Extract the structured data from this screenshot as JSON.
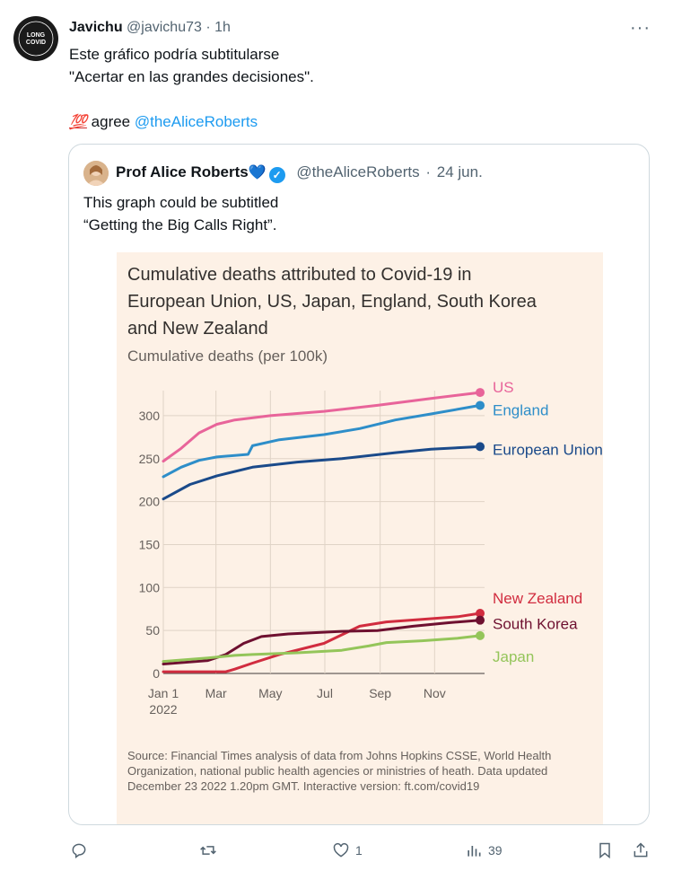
{
  "tweet": {
    "author_name": "Javichu",
    "author_handle": "@javichu73",
    "time": "1h",
    "avatar_text_top": "LONG",
    "avatar_text_bottom": "COVID",
    "lines": [
      "Este gráfico podría subtitularse",
      "\"Acertar en las grandes decisiones\"."
    ],
    "emoji": "💯",
    "agree_text": "agree",
    "mention": "@theAliceRoberts"
  },
  "quoted": {
    "author_name": "Prof Alice Roberts",
    "heart": "💙",
    "verified_mark": "✓",
    "author_handle": "@theAliceRoberts",
    "date": "24 jun.",
    "lines": [
      "This graph could be subtitled",
      "“Getting the Big Calls Right”."
    ]
  },
  "chart_data": {
    "type": "line",
    "title": "Cumulative deaths attributed to Covid-19 in European Union, US, Japan, England, South Korea and New Zealand",
    "title_lines": [
      "Cumulative deaths attributed to Covid-19 in",
      "European Union, US, Japan, England, South Korea",
      "and New Zealand"
    ],
    "subtitle": "Cumulative deaths (per 100k)",
    "ylim": [
      0,
      325
    ],
    "yticks": [
      0,
      50,
      100,
      150,
      200,
      250,
      300
    ],
    "xlim": [
      0,
      360
    ],
    "xticks": [
      {
        "day": 0,
        "label": "Jan 1",
        "sublabel": "2022"
      },
      {
        "day": 59,
        "label": "Mar",
        "sublabel": ""
      },
      {
        "day": 120,
        "label": "May",
        "sublabel": ""
      },
      {
        "day": 181,
        "label": "Jul",
        "sublabel": ""
      },
      {
        "day": 243,
        "label": "Sep",
        "sublabel": ""
      },
      {
        "day": 304,
        "label": "Nov",
        "sublabel": ""
      }
    ],
    "grid": true,
    "series": [
      {
        "name": "US",
        "color": "#e8649a",
        "points": [
          [
            0,
            247
          ],
          [
            20,
            262
          ],
          [
            40,
            280
          ],
          [
            60,
            290
          ],
          [
            80,
            295
          ],
          [
            120,
            300
          ],
          [
            180,
            305
          ],
          [
            240,
            312
          ],
          [
            300,
            320
          ],
          [
            355,
            327
          ]
        ]
      },
      {
        "name": "England",
        "color": "#2e8ec9",
        "points": [
          [
            0,
            229
          ],
          [
            20,
            240
          ],
          [
            40,
            248
          ],
          [
            60,
            252
          ],
          [
            95,
            255
          ],
          [
            100,
            265
          ],
          [
            130,
            272
          ],
          [
            180,
            278
          ],
          [
            220,
            285
          ],
          [
            260,
            295
          ],
          [
            300,
            302
          ],
          [
            355,
            312
          ]
        ]
      },
      {
        "name": "European Union",
        "color": "#1a4a8a",
        "points": [
          [
            0,
            203
          ],
          [
            30,
            220
          ],
          [
            60,
            230
          ],
          [
            100,
            240
          ],
          [
            150,
            246
          ],
          [
            200,
            250
          ],
          [
            260,
            257
          ],
          [
            300,
            261
          ],
          [
            355,
            264
          ]
        ]
      },
      {
        "name": "New Zealand",
        "color": "#d12c3f",
        "points": [
          [
            0,
            2
          ],
          [
            70,
            2
          ],
          [
            80,
            5
          ],
          [
            100,
            12
          ],
          [
            130,
            22
          ],
          [
            180,
            35
          ],
          [
            220,
            55
          ],
          [
            250,
            60
          ],
          [
            290,
            63
          ],
          [
            330,
            66
          ],
          [
            355,
            70
          ]
        ]
      },
      {
        "name": "South Korea",
        "color": "#6e1030",
        "points": [
          [
            0,
            11
          ],
          [
            50,
            15
          ],
          [
            70,
            22
          ],
          [
            90,
            35
          ],
          [
            110,
            43
          ],
          [
            140,
            46
          ],
          [
            200,
            49
          ],
          [
            240,
            50
          ],
          [
            280,
            55
          ],
          [
            320,
            59
          ],
          [
            355,
            62
          ]
        ]
      },
      {
        "name": "Japan",
        "color": "#94c55a",
        "points": [
          [
            0,
            14
          ],
          [
            50,
            18
          ],
          [
            80,
            21
          ],
          [
            100,
            22
          ],
          [
            150,
            24
          ],
          [
            200,
            27
          ],
          [
            230,
            32
          ],
          [
            250,
            36
          ],
          [
            290,
            38
          ],
          [
            330,
            41
          ],
          [
            355,
            44
          ]
        ]
      }
    ],
    "source": "Source: Financial Times analysis of data from Johns Hopkins CSSE, World Health Organization, national public health agencies or ministries of heath. Data updated December 23 2022 1.20pm GMT. Interactive version: ft.com/covid19"
  },
  "actions": {
    "reply_count": "",
    "retweet_count": "",
    "like_count": "1",
    "views_count": "39"
  }
}
